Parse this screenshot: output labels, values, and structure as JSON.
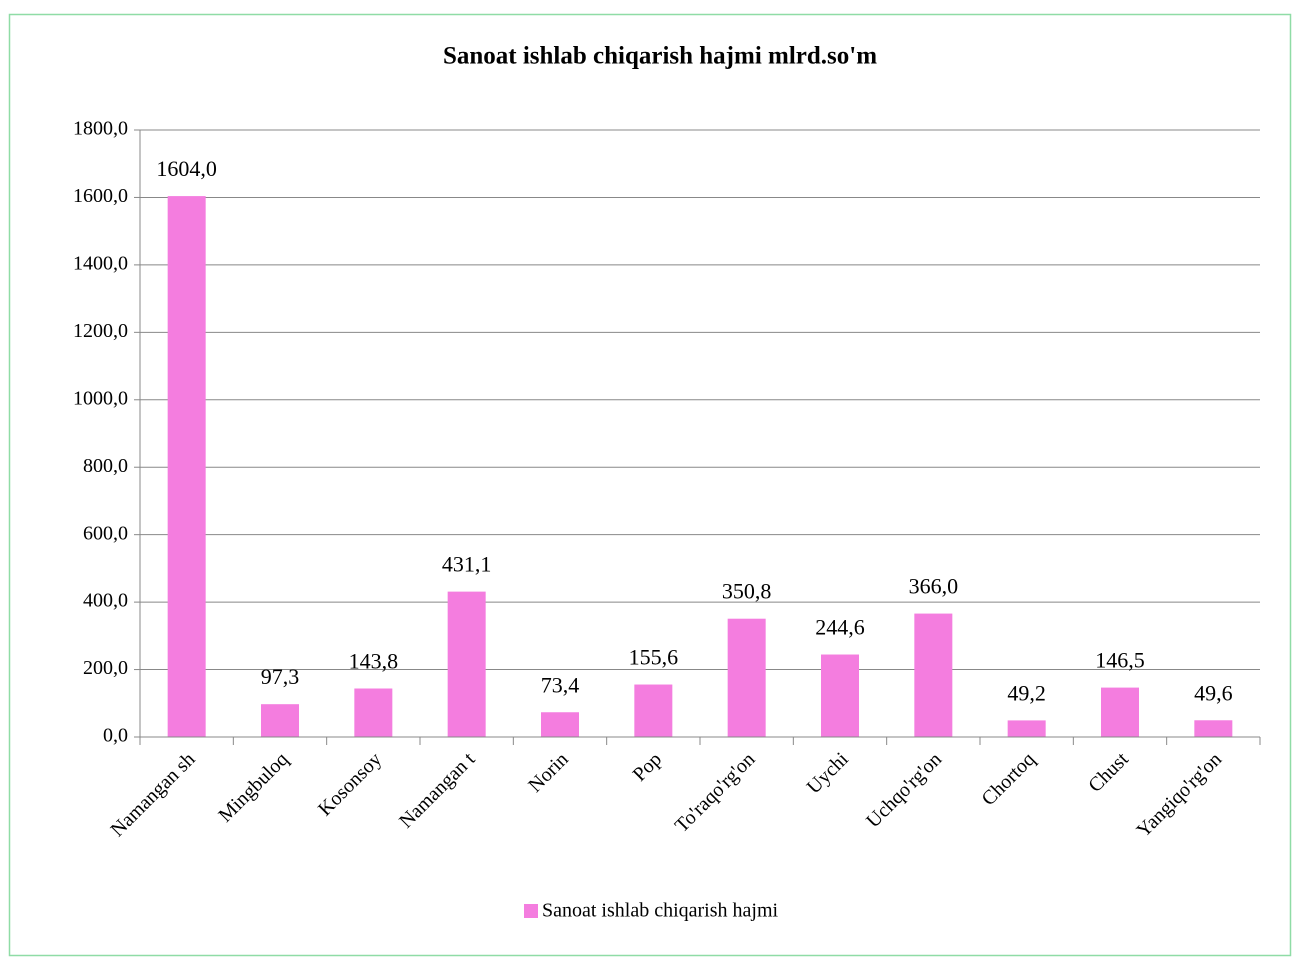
{
  "chart_data": {
    "type": "bar",
    "title": "Sanoat ishlab chiqarish hajmi mlrd.so'm",
    "categories": [
      "Namangan sh",
      "Mingbuloq",
      "Kosonsoy",
      "Namangan t",
      "Norin",
      "Pop",
      "To'raqo'rg'on",
      "Uychi",
      "Uchqo'rg'on",
      "Chortoq",
      "Chust",
      "Yangiqo'rg'on"
    ],
    "series": [
      {
        "name": "Sanoat ishlab chiqarish hajmi",
        "color": "#f47ddf",
        "values": [
          1604.0,
          97.3,
          143.8,
          431.1,
          73.4,
          155.6,
          350.8,
          244.6,
          366.0,
          49.2,
          146.5,
          49.6
        ],
        "value_labels": [
          "1604,0",
          "97,3",
          "143,8",
          "431,1",
          "73,4",
          "155,6",
          "350,8",
          "244,6",
          "366,0",
          "49,2",
          "146,5",
          "49,6"
        ]
      }
    ],
    "ylim": [
      0,
      1800
    ],
    "yticks": [
      {
        "value": 0,
        "label": "0,0"
      },
      {
        "value": 200,
        "label": "200,0"
      },
      {
        "value": 400,
        "label": "400,0"
      },
      {
        "value": 600,
        "label": "600,0"
      },
      {
        "value": 800,
        "label": "800,0"
      },
      {
        "value": 1000,
        "label": "1000,0"
      },
      {
        "value": 1200,
        "label": "1200,0"
      },
      {
        "value": 1400,
        "label": "1400,0"
      },
      {
        "value": 1600,
        "label": "1600,0"
      },
      {
        "value": 1800,
        "label": "1800,0"
      }
    ],
    "grid": true,
    "legend": "bottom"
  }
}
